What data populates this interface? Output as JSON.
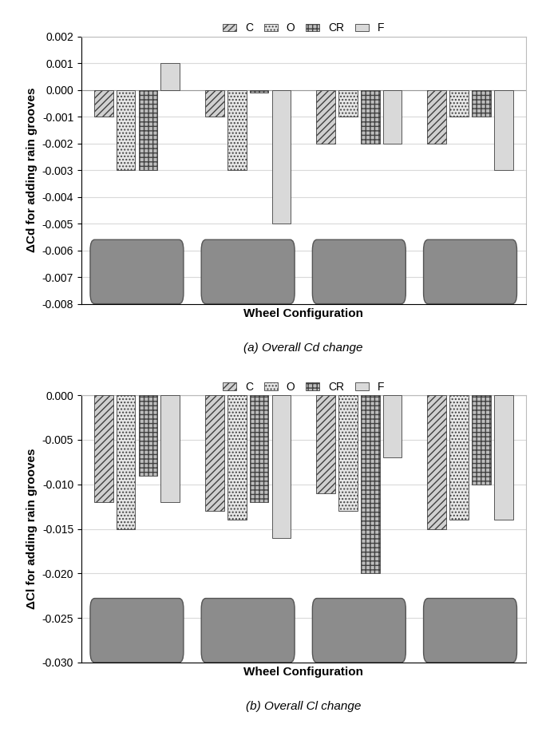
{
  "chart_data": [
    {
      "type": "bar",
      "title": "(a) Overall Cd change",
      "x_label": "Wheel Configuration",
      "y_label": "ΔCd for adding rain grooves",
      "categories": [
        null,
        null,
        null,
        null
      ],
      "series": [
        {
          "name": "C",
          "color": "#d0d0d0",
          "values": [
            -0.001,
            -0.001,
            -0.002,
            -0.002
          ]
        },
        {
          "name": "O",
          "color": "#e6e6e6",
          "values": [
            -0.003,
            -0.003,
            -0.001,
            -0.001
          ]
        },
        {
          "name": "CR",
          "color": "#bdbdbd",
          "values": [
            -0.003,
            -0.0001,
            -0.002,
            -0.001
          ]
        },
        {
          "name": "F",
          "color": "#d9d9d9",
          "values": [
            0.001,
            -0.005,
            -0.002,
            -0.003
          ]
        }
      ],
      "ylim": [
        -0.008,
        0.002
      ],
      "yticks": [
        -0.008,
        -0.007,
        -0.006,
        -0.005,
        -0.004,
        -0.003,
        -0.002,
        -0.001,
        {
          "value": 0.0,
          "label": "0.000"
        },
        0.001,
        0.002
      ],
      "grid": true,
      "legend": "upper center",
      "tick_labels": "y"
    },
    {
      "type": "bar",
      "title": "(b) Overall Cl change",
      "x_label": "Wheel Configuration",
      "y_label": "ΔCl for adding rain grooves",
      "categories": [
        null,
        null,
        null,
        null
      ],
      "series": [
        {
          "name": "C",
          "color": "#d0d0d0",
          "values": [
            -0.012,
            -0.013,
            -0.011,
            -0.015
          ]
        },
        {
          "name": "O",
          "color": "#e6e6e6",
          "values": [
            -0.015,
            -0.014,
            -0.013,
            -0.014
          ]
        },
        {
          "name": "CR",
          "color": "#bdbdbd",
          "values": [
            -0.009,
            -0.012,
            -0.02,
            -0.01
          ]
        },
        {
          "name": "F",
          "color": "#d9d9d9",
          "values": [
            -0.012,
            -0.016,
            -0.007,
            -0.014
          ]
        }
      ],
      "ylim": [
        -0.03,
        0.0
      ],
      "yticks": [
        {
          "value": -0.03,
          "label": "-0.030"
        },
        -0.025,
        {
          "value": -0.02,
          "label": "-0.020"
        },
        -0.015,
        {
          "value": -0.01,
          "label": "-0.010"
        },
        -0.005,
        {
          "value": 0.0,
          "label": "0.000"
        }
      ],
      "grid": true,
      "legend": "upper center",
      "tick_labels": "y"
    }
  ]
}
